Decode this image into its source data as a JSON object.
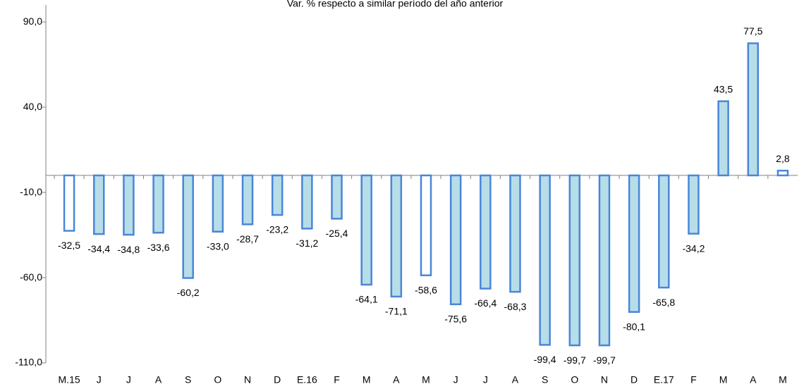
{
  "chart_data": {
    "type": "bar",
    "title": "Var. % respecto a similar período del año anterior",
    "categories": [
      "M.15",
      "J",
      "J",
      "A",
      "S",
      "O",
      "N",
      "D",
      "E.16",
      "F",
      "M",
      "A",
      "M",
      "J",
      "J",
      "A",
      "S",
      "O",
      "N",
      "D",
      "E.17",
      "F",
      "M",
      "A",
      "M"
    ],
    "values": [
      -32.5,
      -34.4,
      -34.8,
      -33.6,
      -60.2,
      -33.0,
      -28.7,
      -23.2,
      -31.2,
      -25.4,
      -64.1,
      -71.1,
      -58.6,
      -75.6,
      -66.4,
      -68.3,
      -99.4,
      -99.7,
      -99.7,
      -80.1,
      -65.8,
      -34.2,
      43.5,
      77.5,
      2.8
    ],
    "value_labels": [
      "-32,5",
      "-34,4",
      "-34,8",
      "-33,6",
      "-60,2",
      "-33,0",
      "-28,7",
      "-23,2",
      "-31,2",
      "-25,4",
      "-64,1",
      "-71,1",
      "-58,6",
      "-75,6",
      "-66,4",
      "-68,3",
      "-99,4",
      "-99,7",
      "-99,7",
      "-80,1",
      "-65,8",
      "-34,2",
      "43,5",
      "77,5",
      "2,8"
    ],
    "colors": [
      "#ffffff",
      "#b7dde8",
      "#b7dde8",
      "#b7dde8",
      "#b7dde8",
      "#b7dde8",
      "#b7dde8",
      "#b7dde8",
      "#b7dde8",
      "#b7dde8",
      "#b7dde8",
      "#b7dde8",
      "#ffffff",
      "#b7dde8",
      "#b7dde8",
      "#b7dde8",
      "#b7dde8",
      "#b7dde8",
      "#b7dde8",
      "#b7dde8",
      "#b7dde8",
      "#b7dde8",
      "#b7dde8",
      "#b7dde8",
      "#ffffff"
    ],
    "edge_color": "#4a86d8",
    "ylim": [
      -110,
      100
    ],
    "yticks": [
      {
        "value": -110,
        "label": "-110,0"
      },
      {
        "value": -60,
        "label": "-60,0"
      },
      {
        "value": -10,
        "label": "-10,0"
      },
      {
        "value": 40,
        "label": "40,0"
      },
      {
        "value": 90,
        "label": "90,0"
      }
    ]
  }
}
